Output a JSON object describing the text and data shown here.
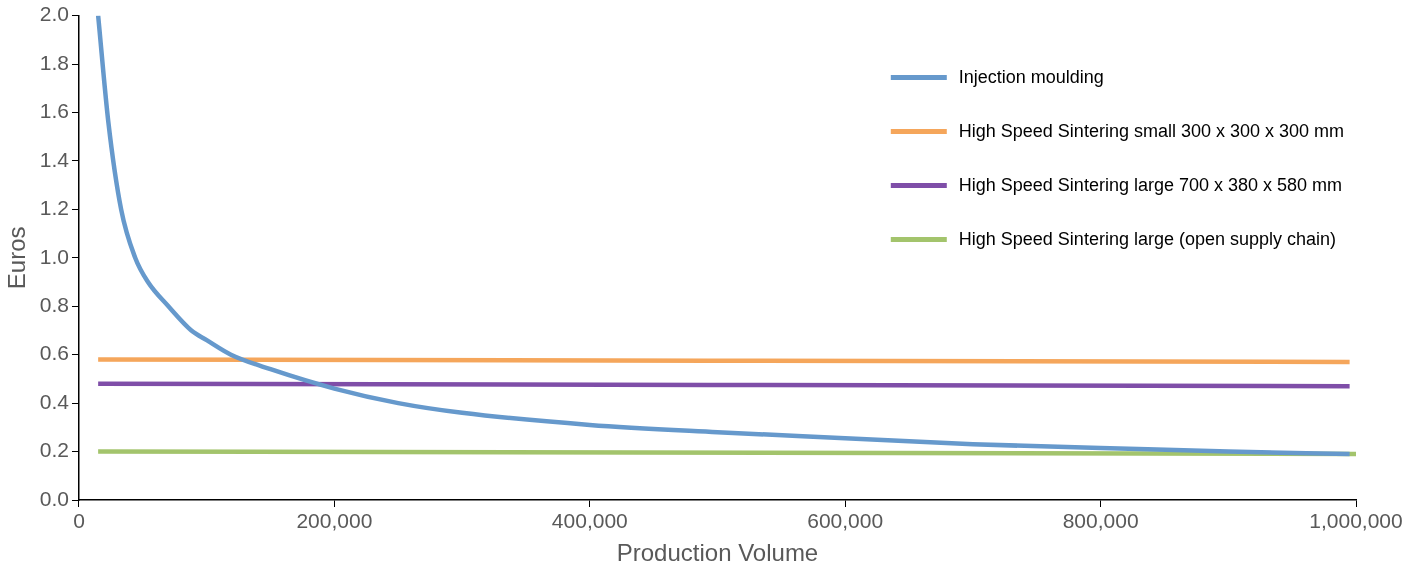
{
  "chart_data": {
    "type": "line",
    "xlabel": "Production Volume",
    "ylabel": "Euros",
    "xlim": [
      0,
      1000000
    ],
    "xticks": [
      {
        "value": 0,
        "label": "0"
      },
      {
        "value": 200000,
        "label": "200,000"
      },
      {
        "value": 400000,
        "label": "400,000"
      },
      {
        "value": 600000,
        "label": "600,000"
      },
      {
        "value": 800000,
        "label": "800,000"
      },
      {
        "value": 1000000,
        "label": "1,000,000"
      }
    ],
    "ylim": [
      0,
      2
    ],
    "yticks": [
      {
        "value": 0,
        "label": "0.0"
      },
      {
        "value": 0.2,
        "label": "0.2"
      },
      {
        "value": 0.4,
        "label": "0.4"
      },
      {
        "value": 0.6,
        "label": "0.6"
      },
      {
        "value": 0.8,
        "label": "0.8"
      },
      {
        "value": 1,
        "label": "1.0"
      },
      {
        "value": 1.2,
        "label": "1.2"
      },
      {
        "value": 1.4,
        "label": "1.4"
      },
      {
        "value": 1.6,
        "label": "1.6"
      },
      {
        "value": 1.8,
        "label": "1.8"
      },
      {
        "value": 2,
        "label": "2.0"
      }
    ],
    "grid": false,
    "legend": "top right",
    "marker": "none",
    "line_style": "solid",
    "series": [
      {
        "name": "Injection moulding",
        "color": "#6699cc",
        "x": [
          15000,
          23000,
          33000,
          44000,
          54000,
          70000,
          88000,
          100000,
          119000,
          150000,
          200000,
          250000,
          300000,
          400000,
          500000,
          600000,
          700000,
          800000,
          900000,
          995000
        ],
        "values": [
          2.0,
          1.56,
          1.2,
          1.0,
          0.9,
          0.8,
          0.7,
          0.66,
          0.6,
          0.54,
          0.46,
          0.4,
          0.36,
          0.31,
          0.28,
          0.255,
          0.23,
          0.215,
          0.2,
          0.19
        ]
      },
      {
        "name": "High Speed Sintering small 300 x 300 x 300 mm",
        "color": "#f5a65b",
        "x": [
          15000,
          995000
        ],
        "values": [
          0.58,
          0.57
        ]
      },
      {
        "name": "High Speed Sintering large 700 x 380 x 580 mm",
        "color": "#7f4ea8",
        "x": [
          15000,
          995000
        ],
        "values": [
          0.48,
          0.47
        ]
      },
      {
        "name": "High Speed Sintering large (open supply chain)",
        "color": "#a3c46c",
        "x": [
          15000,
          1000000
        ],
        "values": [
          0.2,
          0.19
        ]
      }
    ]
  }
}
